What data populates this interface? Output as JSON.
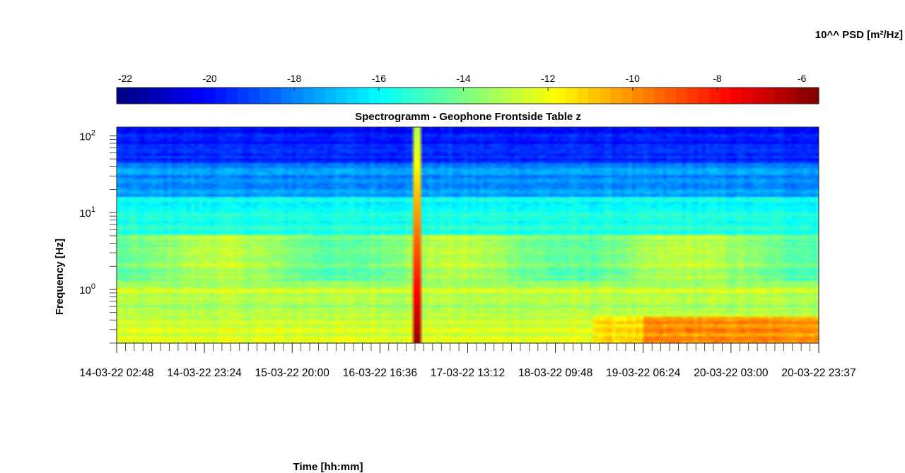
{
  "chart_data": {
    "type": "heatmap",
    "title": "Spectrogramm - Geophone Frontside Table z",
    "xlabel": "Time [hh:mm]",
    "ylabel": "Frequency [Hz]",
    "y_scale": "log",
    "ylim": [
      0.2,
      130
    ],
    "y_ticks": [
      {
        "label_base": "10",
        "label_exp": "0",
        "value": 1
      },
      {
        "label_base": "10",
        "label_exp": "1",
        "value": 10
      },
      {
        "label_base": "10",
        "label_exp": "2",
        "value": 100
      }
    ],
    "x_ticks": [
      "14-03-22 02:48",
      "14-03-22 23:24",
      "15-03-22 20:00",
      "16-03-22 16:36",
      "17-03-22 13:12",
      "18-03-22 09:48",
      "19-03-22 06:24",
      "20-03-22 03:00",
      "20-03-22 23:37"
    ],
    "colorbar": {
      "label": "10^^ PSD [m²/Hz]",
      "range": [
        -22.2,
        -5.6
      ],
      "ticks": [
        "-22",
        "-20",
        "-18",
        "-16",
        "-14",
        "-12",
        "-10",
        "-8",
        "-6"
      ],
      "tick_values": [
        -22,
        -20,
        -18,
        -16,
        -14,
        -12,
        -10,
        -8,
        -6
      ],
      "colormap": "jet"
    },
    "features": {
      "event_time_fraction": 0.43,
      "event_peak_log_psd": -6,
      "background_low_freq_log_psd": -12.5,
      "background_high_freq_log_psd": -20,
      "late_low_freq_enhancement_log_psd": -9.5
    }
  }
}
